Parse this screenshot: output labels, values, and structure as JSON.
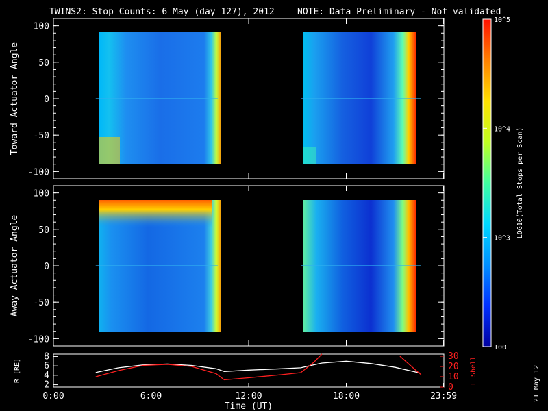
{
  "title": {
    "main": "TWINS2: Stop Counts:  6 May (day 127), 2012",
    "note": "NOTE: Data Preliminary - Not validated",
    "note_color": "#ff2020"
  },
  "stamp": "21 May 12",
  "chart_data": [
    {
      "type": "heatmap",
      "ylabel": "Toward Actuator Angle",
      "ylim": [
        -110,
        110
      ],
      "yticks": [
        "100",
        "50",
        "0",
        "-50",
        "-100"
      ],
      "ytick_values": [
        100,
        50,
        0,
        -50,
        -100
      ],
      "x_range_hours": [
        0,
        24
      ],
      "data_windows_hours": [
        [
          2.6,
          10.1
        ],
        [
          15.2,
          22.6
        ]
      ],
      "y_extent": [
        -90,
        90
      ],
      "dominant_color": "#1f8af0"
    },
    {
      "type": "heatmap",
      "ylabel": "Away Actuator Angle",
      "ylim": [
        -110,
        110
      ],
      "yticks": [
        "100",
        "50",
        "0",
        "-50",
        "-100"
      ],
      "ytick_values": [
        100,
        50,
        0,
        -50,
        -100
      ],
      "x_range_hours": [
        0,
        24
      ],
      "data_windows_hours": [
        [
          2.6,
          10.1
        ],
        [
          15.2,
          22.6
        ]
      ],
      "y_extent": [
        -90,
        90
      ],
      "dominant_color": "#1f8af0"
    },
    {
      "type": "line",
      "ylabel_left": "R [RE]",
      "ylabel_right": "L Shell",
      "xlabel": "Time (UT)",
      "xticks": [
        "0:00",
        "6:00",
        "12:00",
        "18:00",
        "23:59"
      ],
      "xtick_hours": [
        0,
        6,
        12,
        18,
        23.98
      ],
      "yticks_left": [
        "8",
        "6",
        "4",
        "2"
      ],
      "ytick_left_values": [
        8,
        6,
        4,
        2
      ],
      "ylim_left": [
        1.5,
        8.5
      ],
      "yticks_right": [
        "30",
        "20",
        "10",
        "0"
      ],
      "ytick_right_values": [
        30,
        20,
        10,
        0
      ],
      "ylim_right": [
        0,
        32
      ],
      "series": [
        {
          "name": "R",
          "color": "#ffffff",
          "axis": "left",
          "x": [
            2.6,
            4,
            5.5,
            7,
            8.5,
            10,
            10.5,
            12,
            14,
            15.2,
            16.5,
            18,
            19.5,
            21,
            22.5
          ],
          "y": [
            4.6,
            5.6,
            6.2,
            6.4,
            6.1,
            5.4,
            4.8,
            5.1,
            5.4,
            5.6,
            6.6,
            7.0,
            6.5,
            5.7,
            4.5
          ]
        },
        {
          "name": "L Shell",
          "color": "#ff2020",
          "axis": "right",
          "x": [
            2.6,
            4,
            5.5,
            7,
            8.5,
            10,
            10.5,
            12,
            14,
            15.2,
            16.0,
            16.5
          ],
          "y": [
            10,
            16,
            21,
            22,
            20,
            13,
            7,
            9,
            12,
            14,
            24,
            35
          ]
        },
        {
          "name": "L Shell (end)",
          "color": "#ff2020",
          "axis": "right",
          "x": [
            21.3,
            21.8,
            22.3,
            22.6
          ],
          "y": [
            30,
            23,
            16,
            12
          ]
        }
      ]
    }
  ],
  "colorbar": {
    "label": "LOG10(Total Stops per Scan)",
    "ticks": [
      "10^5",
      "10^4",
      "10^3",
      "100"
    ],
    "tick_values": [
      100000,
      10000,
      1000,
      100
    ],
    "stops": [
      "#0000a0",
      "#0030ff",
      "#0090ff",
      "#00d8ff",
      "#40ffa0",
      "#c0ff20",
      "#ffe000",
      "#ff8000",
      "#ff1000"
    ]
  }
}
